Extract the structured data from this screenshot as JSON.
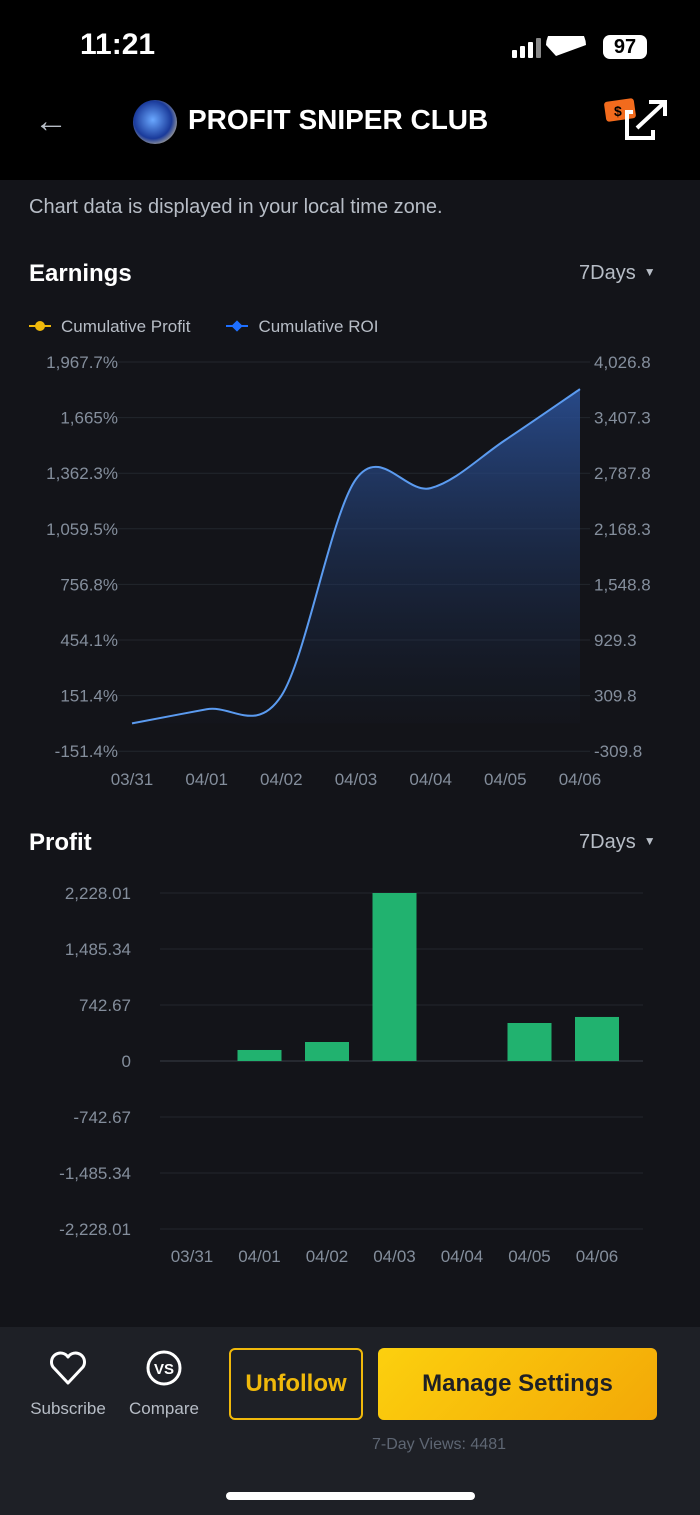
{
  "status_bar": {
    "time": "11:21",
    "battery": "97"
  },
  "header": {
    "title": "PROFIT SNIPER CLUB",
    "back_icon": "arrow-left-icon",
    "share_icon": "share-external-icon"
  },
  "note": "Chart data is displayed in your local time zone.",
  "earnings": {
    "title": "Earnings",
    "range": "7Days",
    "legend": [
      "Cumulative Profit",
      "Cumulative ROI"
    ],
    "colors": {
      "profit": "#f0b90b",
      "roi": "#1e6fff"
    }
  },
  "profit": {
    "title": "Profit",
    "range": "7Days"
  },
  "chart_data": [
    {
      "type": "area",
      "title": "Earnings",
      "categories": [
        "03/31",
        "04/01",
        "04/02",
        "04/03",
        "04/04",
        "04/05",
        "04/06"
      ],
      "left_ticks": [
        "1,967.7%",
        "1,665%",
        "1,362.3%",
        "1,059.5%",
        "756.8%",
        "454.1%",
        "151.4%",
        "-151.4%"
      ],
      "right_ticks": [
        "4,026.8",
        "3,407.3",
        "2,787.8",
        "2,168.3",
        "1,548.8",
        "929.3",
        "309.8",
        "-309.8"
      ],
      "ylim": [
        -151.4,
        1967.7
      ],
      "series": [
        {
          "name": "Cumulative ROI",
          "values": [
            0,
            77,
            150,
            1330,
            1281,
            1543,
            1820
          ]
        }
      ],
      "legend_placement": "top-left",
      "grid": true
    },
    {
      "type": "bar",
      "title": "Profit",
      "categories": [
        "03/31",
        "04/01",
        "04/02",
        "04/03",
        "04/04",
        "04/05",
        "04/06"
      ],
      "ticks": [
        "2,228.01",
        "1,485.34",
        "742.67",
        "0",
        "-742.67",
        "-1,485.34",
        "-2,228.01"
      ],
      "ylim": [
        -2228.01,
        2228.01
      ],
      "values": [
        0,
        146,
        252,
        2228.01,
        0,
        504,
        584
      ],
      "color": "#21b26f",
      "grid": true
    }
  ],
  "bottom": {
    "subscribe": "Subscribe",
    "compare": "Compare",
    "unfollow": "Unfollow",
    "manage": "Manage Settings",
    "views": "7-Day Views: 4481",
    "compare_glyph": "VS"
  }
}
